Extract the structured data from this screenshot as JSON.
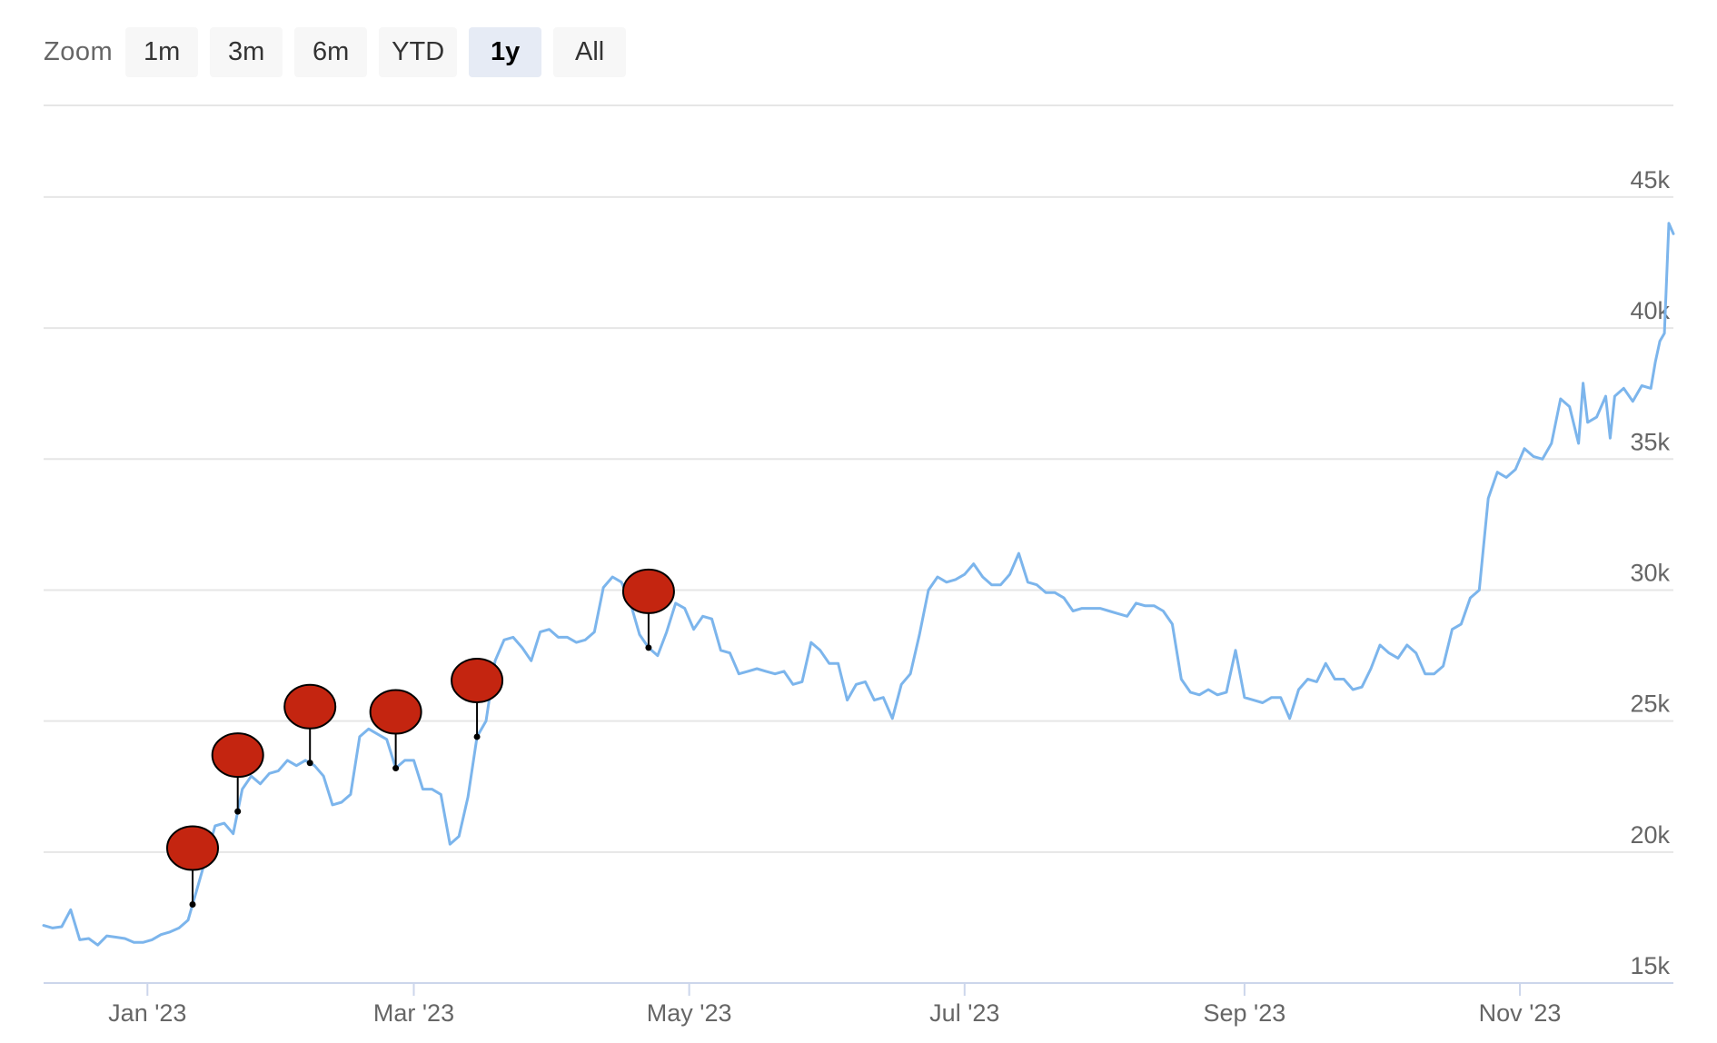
{
  "range_selector": {
    "label": "Zoom",
    "buttons": [
      {
        "label": "1m",
        "selected": false
      },
      {
        "label": "3m",
        "selected": false
      },
      {
        "label": "6m",
        "selected": false
      },
      {
        "label": "YTD",
        "selected": false
      },
      {
        "label": "1y",
        "selected": true
      },
      {
        "label": "All",
        "selected": false
      }
    ]
  },
  "chart_data": {
    "type": "line",
    "title": "",
    "xlabel": "",
    "ylabel": "",
    "x_range": [
      "2022-12-09",
      "2023-12-05"
    ],
    "ylim": [
      15000,
      48500
    ],
    "y_axis_position": "right",
    "yticks": [
      15000,
      20000,
      25000,
      30000,
      35000,
      40000,
      45000
    ],
    "ytick_labels": [
      "15k",
      "20k",
      "25k",
      "30k",
      "35k",
      "40k",
      "45k"
    ],
    "xticks": [
      "2023-01-01",
      "2023-03-01",
      "2023-05-01",
      "2023-07-01",
      "2023-09-01",
      "2023-11-01"
    ],
    "xtick_labels": [
      "Jan '23",
      "Mar '23",
      "May '23",
      "Jul '23",
      "Sep '23",
      "Nov '23"
    ],
    "grid": true,
    "line_color": "#7cb5ec",
    "flag_color": "#c42510",
    "series": [
      {
        "points": [
          [
            "2022-12-09",
            17200
          ],
          [
            "2022-12-11",
            17100
          ],
          [
            "2022-12-13",
            17150
          ],
          [
            "2022-12-15",
            17800
          ],
          [
            "2022-12-17",
            16650
          ],
          [
            "2022-12-19",
            16700
          ],
          [
            "2022-12-21",
            16450
          ],
          [
            "2022-12-23",
            16800
          ],
          [
            "2022-12-25",
            16750
          ],
          [
            "2022-12-27",
            16700
          ],
          [
            "2022-12-29",
            16550
          ],
          [
            "2022-12-31",
            16550
          ],
          [
            "2023-01-02",
            16650
          ],
          [
            "2023-01-04",
            16850
          ],
          [
            "2023-01-06",
            16950
          ],
          [
            "2023-01-08",
            17100
          ],
          [
            "2023-01-10",
            17400
          ],
          [
            "2023-01-12",
            18600
          ],
          [
            "2023-01-14",
            19800
          ],
          [
            "2023-01-16",
            21000
          ],
          [
            "2023-01-18",
            21100
          ],
          [
            "2023-01-20",
            20700
          ],
          [
            "2023-01-22",
            22400
          ],
          [
            "2023-01-24",
            22900
          ],
          [
            "2023-01-26",
            22600
          ],
          [
            "2023-01-28",
            23000
          ],
          [
            "2023-01-30",
            23100
          ],
          [
            "2023-02-01",
            23500
          ],
          [
            "2023-02-03",
            23300
          ],
          [
            "2023-02-05",
            23500
          ],
          [
            "2023-02-07",
            23300
          ],
          [
            "2023-02-09",
            22900
          ],
          [
            "2023-02-11",
            21800
          ],
          [
            "2023-02-13",
            21900
          ],
          [
            "2023-02-15",
            22200
          ],
          [
            "2023-02-17",
            24400
          ],
          [
            "2023-02-19",
            24700
          ],
          [
            "2023-02-21",
            24500
          ],
          [
            "2023-02-23",
            24300
          ],
          [
            "2023-02-25",
            23200
          ],
          [
            "2023-02-27",
            23500
          ],
          [
            "2023-03-01",
            23500
          ],
          [
            "2023-03-03",
            22400
          ],
          [
            "2023-03-05",
            22400
          ],
          [
            "2023-03-07",
            22200
          ],
          [
            "2023-03-09",
            20300
          ],
          [
            "2023-03-11",
            20600
          ],
          [
            "2023-03-13",
            22100
          ],
          [
            "2023-03-15",
            24400
          ],
          [
            "2023-03-17",
            25000
          ],
          [
            "2023-03-19",
            27300
          ],
          [
            "2023-03-21",
            28100
          ],
          [
            "2023-03-23",
            28200
          ],
          [
            "2023-03-25",
            27800
          ],
          [
            "2023-03-27",
            27300
          ],
          [
            "2023-03-29",
            28400
          ],
          [
            "2023-03-31",
            28500
          ],
          [
            "2023-04-02",
            28200
          ],
          [
            "2023-04-04",
            28200
          ],
          [
            "2023-04-06",
            28000
          ],
          [
            "2023-04-08",
            28100
          ],
          [
            "2023-04-10",
            28400
          ],
          [
            "2023-04-12",
            30100
          ],
          [
            "2023-04-14",
            30500
          ],
          [
            "2023-04-16",
            30300
          ],
          [
            "2023-04-18",
            29500
          ],
          [
            "2023-04-20",
            28300
          ],
          [
            "2023-04-22",
            27800
          ],
          [
            "2023-04-24",
            27500
          ],
          [
            "2023-04-26",
            28400
          ],
          [
            "2023-04-28",
            29500
          ],
          [
            "2023-04-30",
            29300
          ],
          [
            "2023-05-02",
            28500
          ],
          [
            "2023-05-04",
            29000
          ],
          [
            "2023-05-06",
            28900
          ],
          [
            "2023-05-08",
            27700
          ],
          [
            "2023-05-10",
            27600
          ],
          [
            "2023-05-12",
            26800
          ],
          [
            "2023-05-14",
            26900
          ],
          [
            "2023-05-16",
            27000
          ],
          [
            "2023-05-18",
            26900
          ],
          [
            "2023-05-20",
            26800
          ],
          [
            "2023-05-22",
            26900
          ],
          [
            "2023-05-24",
            26400
          ],
          [
            "2023-05-26",
            26500
          ],
          [
            "2023-05-28",
            28000
          ],
          [
            "2023-05-30",
            27700
          ],
          [
            "2023-06-01",
            27200
          ],
          [
            "2023-06-03",
            27200
          ],
          [
            "2023-06-05",
            25800
          ],
          [
            "2023-06-07",
            26400
          ],
          [
            "2023-06-09",
            26500
          ],
          [
            "2023-06-11",
            25800
          ],
          [
            "2023-06-13",
            25900
          ],
          [
            "2023-06-15",
            25100
          ],
          [
            "2023-06-17",
            26400
          ],
          [
            "2023-06-19",
            26800
          ],
          [
            "2023-06-21",
            28300
          ],
          [
            "2023-06-23",
            30000
          ],
          [
            "2023-06-25",
            30500
          ],
          [
            "2023-06-27",
            30300
          ],
          [
            "2023-06-29",
            30400
          ],
          [
            "2023-07-01",
            30600
          ],
          [
            "2023-07-03",
            31000
          ],
          [
            "2023-07-05",
            30500
          ],
          [
            "2023-07-07",
            30200
          ],
          [
            "2023-07-09",
            30200
          ],
          [
            "2023-07-11",
            30600
          ],
          [
            "2023-07-13",
            31400
          ],
          [
            "2023-07-15",
            30300
          ],
          [
            "2023-07-17",
            30200
          ],
          [
            "2023-07-19",
            29900
          ],
          [
            "2023-07-21",
            29900
          ],
          [
            "2023-07-23",
            29700
          ],
          [
            "2023-07-25",
            29200
          ],
          [
            "2023-07-27",
            29300
          ],
          [
            "2023-07-29",
            29300
          ],
          [
            "2023-07-31",
            29300
          ],
          [
            "2023-08-02",
            29200
          ],
          [
            "2023-08-04",
            29100
          ],
          [
            "2023-08-06",
            29000
          ],
          [
            "2023-08-08",
            29500
          ],
          [
            "2023-08-10",
            29400
          ],
          [
            "2023-08-12",
            29400
          ],
          [
            "2023-08-14",
            29200
          ],
          [
            "2023-08-16",
            28700
          ],
          [
            "2023-08-18",
            26600
          ],
          [
            "2023-08-20",
            26100
          ],
          [
            "2023-08-22",
            26000
          ],
          [
            "2023-08-24",
            26200
          ],
          [
            "2023-08-26",
            26000
          ],
          [
            "2023-08-28",
            26100
          ],
          [
            "2023-08-30",
            27700
          ],
          [
            "2023-09-01",
            25900
          ],
          [
            "2023-09-03",
            25800
          ],
          [
            "2023-09-05",
            25700
          ],
          [
            "2023-09-07",
            25900
          ],
          [
            "2023-09-09",
            25900
          ],
          [
            "2023-09-11",
            25100
          ],
          [
            "2023-09-13",
            26200
          ],
          [
            "2023-09-15",
            26600
          ],
          [
            "2023-09-17",
            26500
          ],
          [
            "2023-09-19",
            27200
          ],
          [
            "2023-09-21",
            26600
          ],
          [
            "2023-09-23",
            26600
          ],
          [
            "2023-09-25",
            26200
          ],
          [
            "2023-09-27",
            26300
          ],
          [
            "2023-09-29",
            27000
          ],
          [
            "2023-10-01",
            27900
          ],
          [
            "2023-10-03",
            27600
          ],
          [
            "2023-10-05",
            27400
          ],
          [
            "2023-10-07",
            27900
          ],
          [
            "2023-10-09",
            27600
          ],
          [
            "2023-10-11",
            26800
          ],
          [
            "2023-10-13",
            26800
          ],
          [
            "2023-10-15",
            27100
          ],
          [
            "2023-10-17",
            28500
          ],
          [
            "2023-10-19",
            28700
          ],
          [
            "2023-10-21",
            29700
          ],
          [
            "2023-10-23",
            30000
          ],
          [
            "2023-10-25",
            33500
          ],
          [
            "2023-10-27",
            34500
          ],
          [
            "2023-10-29",
            34300
          ],
          [
            "2023-10-31",
            34600
          ],
          [
            "2023-11-02",
            35400
          ],
          [
            "2023-11-04",
            35100
          ],
          [
            "2023-11-06",
            35000
          ],
          [
            "2023-11-08",
            35600
          ],
          [
            "2023-11-10",
            37300
          ],
          [
            "2023-11-12",
            37000
          ],
          [
            "2023-11-14",
            35600
          ],
          [
            "2023-11-15",
            37900
          ],
          [
            "2023-11-16",
            36400
          ],
          [
            "2023-11-18",
            36600
          ],
          [
            "2023-11-20",
            37400
          ],
          [
            "2023-11-21",
            35800
          ],
          [
            "2023-11-22",
            37400
          ],
          [
            "2023-11-24",
            37700
          ],
          [
            "2023-11-26",
            37200
          ],
          [
            "2023-11-28",
            37800
          ],
          [
            "2023-11-30",
            37700
          ],
          [
            "2023-12-01",
            38700
          ],
          [
            "2023-12-02",
            39500
          ],
          [
            "2023-12-03",
            39800
          ],
          [
            "2023-12-04",
            44000
          ],
          [
            "2023-12-05",
            43600
          ]
        ]
      }
    ],
    "flags": [
      {
        "date": "2023-01-11"
      },
      {
        "date": "2023-01-21"
      },
      {
        "date": "2023-02-06"
      },
      {
        "date": "2023-02-25"
      },
      {
        "date": "2023-03-15"
      },
      {
        "date": "2023-04-22"
      }
    ]
  }
}
